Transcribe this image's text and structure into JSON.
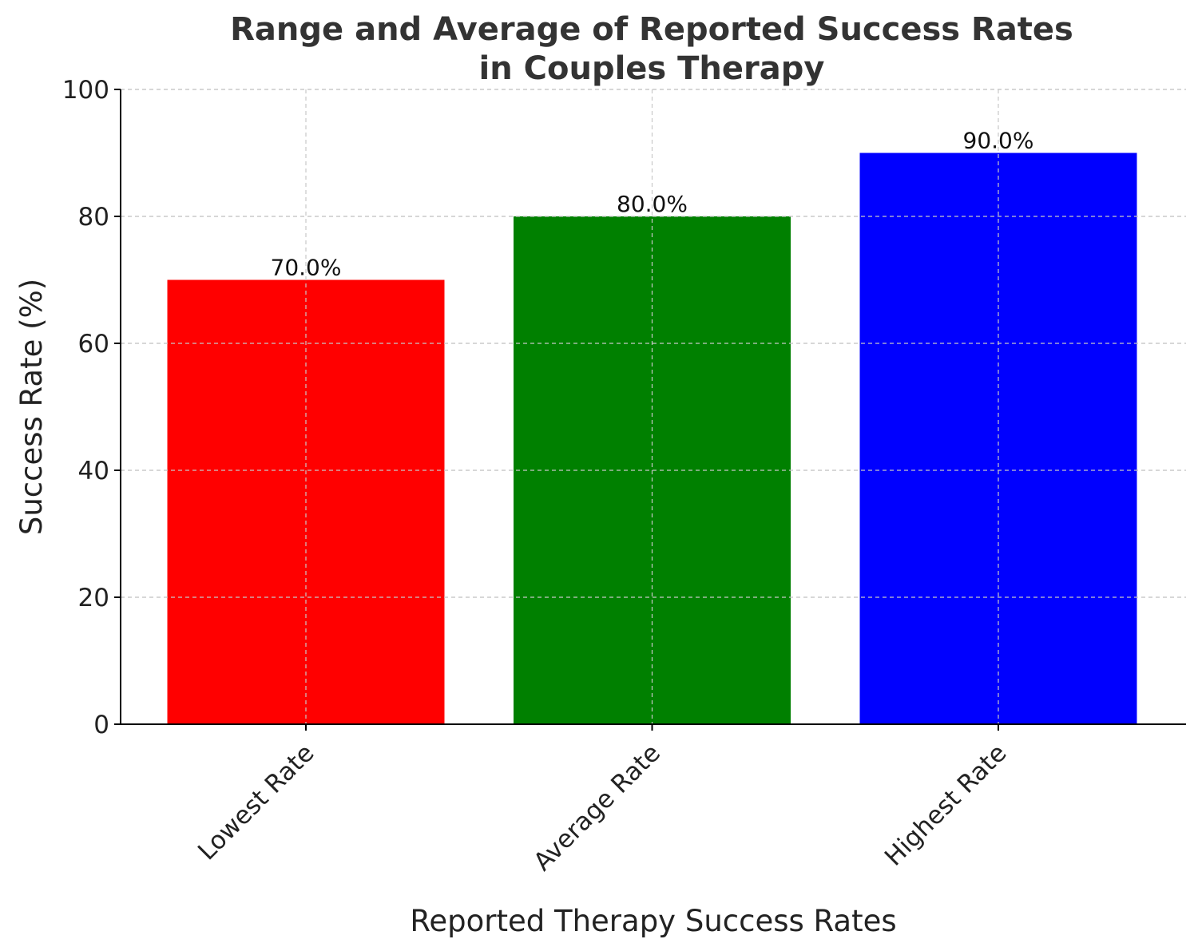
{
  "chart_data": {
    "type": "bar",
    "title": "Range and Average of Reported Success Rates\nin Couples Therapy",
    "title_lines": [
      "Range and Average of Reported Success Rates",
      "in Couples Therapy"
    ],
    "xlabel": "Reported Therapy Success Rates",
    "ylabel": "Success Rate (%)",
    "categories": [
      "Lowest Rate",
      "Average Rate",
      "Highest Rate"
    ],
    "values": [
      70.0,
      80.0,
      90.0
    ],
    "value_labels": [
      "70.0%",
      "80.0%",
      "90.0%"
    ],
    "colors": [
      "#ff0000",
      "#008000",
      "#0000ff"
    ],
    "ylim": [
      0,
      100
    ],
    "yticks": [
      0,
      20,
      40,
      60,
      80,
      100
    ],
    "ytick_labels": [
      "0",
      "20",
      "40",
      "60",
      "80",
      "100"
    ],
    "grid": true
  }
}
